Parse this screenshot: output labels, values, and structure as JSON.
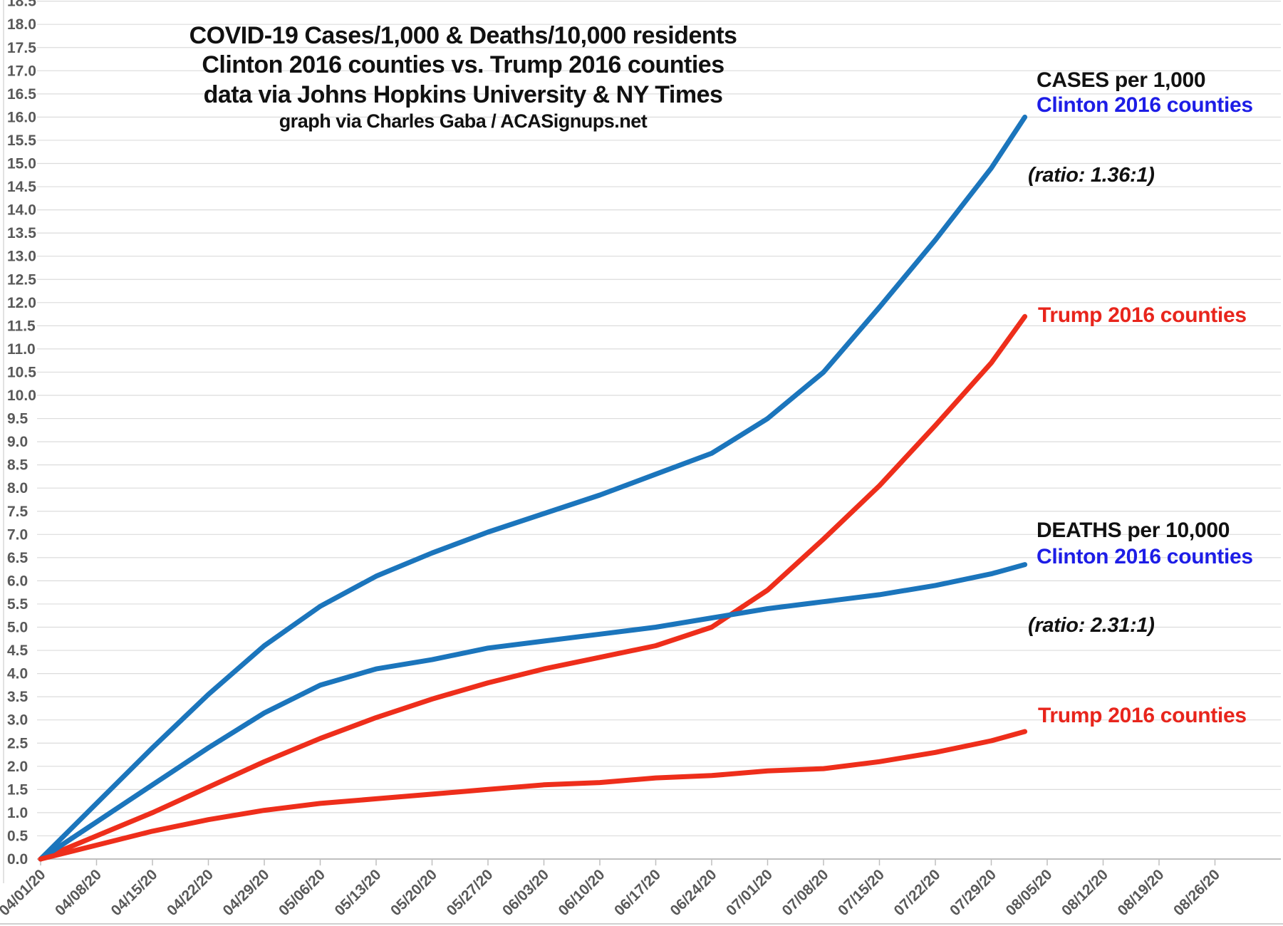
{
  "title": {
    "line1": "COVID-19 Cases/1,000 & Deaths/10,000 residents",
    "line2": "Clinton 2016 counties vs. Trump 2016 counties",
    "line3": "data via Johns Hopkins University & NY Times",
    "line4": "graph via Charles Gaba / ACASignups.net"
  },
  "annotations": {
    "cases_header": "CASES per 1,000",
    "cases_clinton_label": "Clinton 2016 counties",
    "cases_ratio": "(ratio: 1.36:1)",
    "cases_trump_label": "Trump 2016 counties",
    "deaths_header": "DEATHS per 10,000",
    "deaths_clinton_label": "Clinton 2016 counties",
    "deaths_ratio": "(ratio: 2.31:1)",
    "deaths_trump_label": "Trump 2016 counties"
  },
  "colors": {
    "clinton_line": "#1b75bc",
    "trump_line": "#ee2e1b",
    "clinton_text": "#1d1de6",
    "trump_text": "#e8251c",
    "axis_text": "#595959",
    "gridline": "#dcdcdc",
    "axis_line": "#bfbfbf",
    "tick": "#bfbfbf"
  },
  "chart_data": {
    "type": "line",
    "title": "COVID-19 Cases/1,000 & Deaths/10,000 residents — Clinton 2016 counties vs. Trump 2016 counties",
    "xlabel": "",
    "ylabel": "",
    "ylim": [
      0,
      18.5
    ],
    "ystep": 0.5,
    "grid": "horizontal",
    "legend_position": "right-side annotations",
    "x_tick_labels": [
      "04/01/20",
      "04/08/20",
      "04/15/20",
      "04/22/20",
      "04/29/20",
      "05/06/20",
      "05/13/20",
      "05/20/20",
      "05/27/20",
      "06/03/20",
      "06/10/20",
      "06/17/20",
      "06/24/20",
      "07/01/20",
      "07/08/20",
      "07/15/20",
      "07/22/20",
      "07/29/20",
      "08/05/20",
      "08/12/20",
      "08/19/20",
      "08/26/20"
    ],
    "x_dates": [
      "04/01/20",
      "04/08/20",
      "04/15/20",
      "04/22/20",
      "04/29/20",
      "05/06/20",
      "05/13/20",
      "05/20/20",
      "05/27/20",
      "06/03/20",
      "06/10/20",
      "06/17/20",
      "06/24/20",
      "07/01/20",
      "07/08/20",
      "07/15/20",
      "07/22/20",
      "07/29/20",
      "08/01/20"
    ],
    "x_weeks": [
      0,
      1,
      2,
      3,
      4,
      5,
      6,
      7,
      8,
      9,
      10,
      11,
      12,
      13,
      14,
      15,
      16,
      17,
      17.6
    ],
    "series": [
      {
        "name": "Cases per 1,000 — Clinton 2016 counties",
        "color_key": "clinton_line",
        "values": [
          0,
          1.2,
          2.4,
          3.55,
          4.6,
          5.45,
          6.1,
          6.6,
          7.05,
          7.45,
          7.85,
          8.3,
          8.75,
          9.5,
          10.5,
          11.9,
          13.35,
          14.9,
          16.0
        ]
      },
      {
        "name": "Cases per 1,000 — Trump 2016 counties",
        "color_key": "trump_line",
        "values": [
          0,
          0.5,
          1.0,
          1.55,
          2.1,
          2.6,
          3.05,
          3.45,
          3.8,
          4.1,
          4.35,
          4.6,
          5.0,
          5.8,
          6.9,
          8.05,
          9.35,
          10.7,
          11.7
        ]
      },
      {
        "name": "Deaths per 10,000 — Clinton 2016 counties",
        "color_key": "clinton_line",
        "values": [
          0,
          0.8,
          1.6,
          2.4,
          3.15,
          3.75,
          4.1,
          4.3,
          4.55,
          4.7,
          4.85,
          5.0,
          5.2,
          5.4,
          5.55,
          5.7,
          5.9,
          6.15,
          6.35
        ]
      },
      {
        "name": "Deaths per 10,000 — Trump 2016 counties",
        "color_key": "trump_line",
        "values": [
          0,
          0.3,
          0.6,
          0.85,
          1.05,
          1.2,
          1.3,
          1.4,
          1.5,
          1.6,
          1.65,
          1.75,
          1.8,
          1.9,
          1.95,
          2.1,
          2.3,
          2.55,
          2.75
        ]
      }
    ],
    "end_ratios": {
      "cases": "1.36:1",
      "deaths": "2.31:1"
    }
  }
}
